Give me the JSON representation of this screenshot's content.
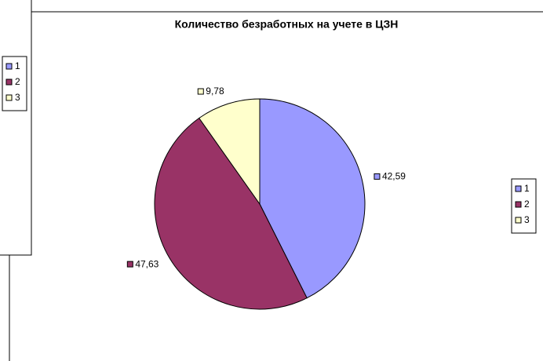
{
  "chart_data": [
    {
      "type": "pie",
      "title": "Количество безработных на учете в ЦЗН",
      "categories": [
        "1",
        "2",
        "3"
      ],
      "values": [
        42.59,
        47.63,
        9.78
      ],
      "value_labels": [
        "42,59",
        "47,63",
        "9,78"
      ],
      "colors": [
        "#9999ff",
        "#993366",
        "#ffffcc"
      ],
      "legend": "right"
    },
    {
      "type": "legend",
      "categories": [
        "1",
        "2",
        "3"
      ],
      "colors": [
        "#9999ff",
        "#993366",
        "#ffffcc"
      ],
      "legend": "left"
    }
  ]
}
